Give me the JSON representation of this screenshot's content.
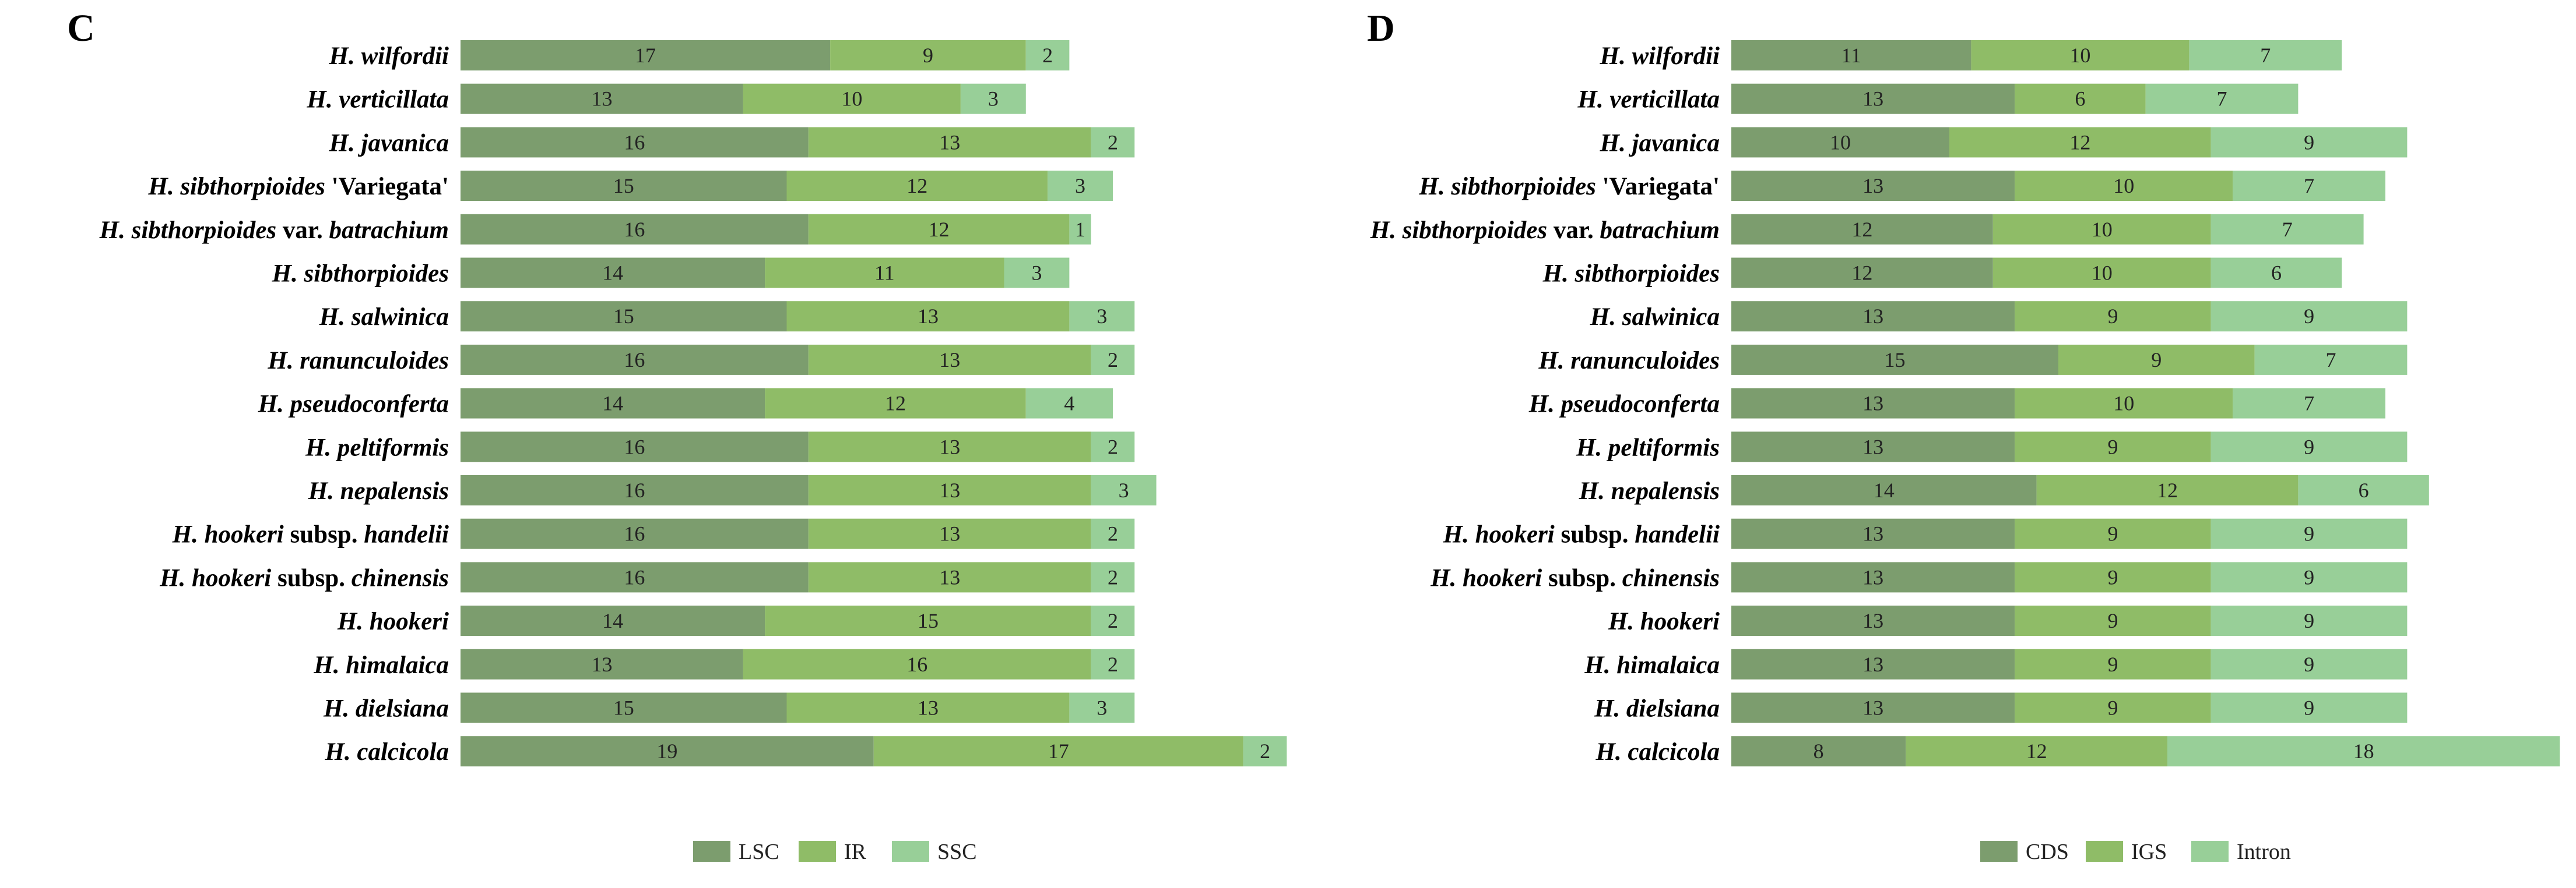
{
  "colors": {
    "seg1": "#7c9d6e",
    "seg2": "#8fbc67",
    "seg3": "#98cf98"
  },
  "chart_data": [
    {
      "type": "bar",
      "orientation": "horizontal",
      "stacked": true,
      "panel": "C",
      "title": "",
      "xlabel": "",
      "ylabel": "",
      "legend_position": "bottom-center",
      "categories": [
        {
          "name": "H. wilfordii",
          "italic": "H. wilfordii",
          "suffix": ""
        },
        {
          "name": "H. verticillata",
          "italic": "H. verticillata",
          "suffix": ""
        },
        {
          "name": "H. javanica",
          "italic": "H. javanica",
          "suffix": ""
        },
        {
          "name": "H. sibthorpioides 'Variegata'",
          "italic": "H. sibthorpioides",
          "suffix": " 'Variegata'"
        },
        {
          "name": "H. sibthorpioides var. batrachium",
          "italic": "H. sibthorpioides",
          "suffix": " var. ",
          "italic2": "batrachium"
        },
        {
          "name": "H. sibthorpioides",
          "italic": "H. sibthorpioides",
          "suffix": ""
        },
        {
          "name": "H. salwinica",
          "italic": "H. salwinica",
          "suffix": ""
        },
        {
          "name": "H. ranunculoides",
          "italic": "H. ranunculoides",
          "suffix": ""
        },
        {
          "name": "H. pseudoconferta",
          "italic": "H. pseudoconferta",
          "suffix": ""
        },
        {
          "name": "H. peltiformis",
          "italic": "H. peltiformis",
          "suffix": ""
        },
        {
          "name": "H. nepalensis",
          "italic": "H. nepalensis",
          "suffix": ""
        },
        {
          "name": "H. hookeri subsp. handelii",
          "italic": "H. hookeri",
          "suffix": " subsp. ",
          "italic2": "handelii"
        },
        {
          "name": "H. hookeri subsp. chinensis",
          "italic": "H. hookeri",
          "suffix": " subsp. ",
          "italic2": "chinensis"
        },
        {
          "name": "H. hookeri",
          "italic": "H. hookeri",
          "suffix": ""
        },
        {
          "name": "H. himalaica",
          "italic": "H. himalaica",
          "suffix": ""
        },
        {
          "name": "H. dielsiana",
          "italic": "H. dielsiana",
          "suffix": ""
        },
        {
          "name": "H. calcicola",
          "italic": "H. calcicola",
          "suffix": ""
        }
      ],
      "series": [
        {
          "name": "LSC",
          "values": [
            17,
            13,
            16,
            15,
            16,
            14,
            15,
            16,
            14,
            16,
            16,
            16,
            16,
            14,
            13,
            15,
            19
          ]
        },
        {
          "name": "IR",
          "values": [
            9,
            10,
            13,
            12,
            12,
            11,
            13,
            13,
            12,
            13,
            13,
            13,
            13,
            15,
            16,
            13,
            17
          ]
        },
        {
          "name": "SSC",
          "values": [
            2,
            3,
            2,
            3,
            1,
            3,
            3,
            2,
            4,
            2,
            3,
            2,
            2,
            2,
            2,
            3,
            2
          ]
        }
      ]
    },
    {
      "type": "bar",
      "orientation": "horizontal",
      "stacked": true,
      "panel": "D",
      "title": "",
      "xlabel": "",
      "ylabel": "",
      "legend_position": "bottom-center",
      "categories": [
        {
          "name": "H. wilfordii",
          "italic": "H. wilfordii",
          "suffix": ""
        },
        {
          "name": "H. verticillata",
          "italic": "H. verticillata",
          "suffix": ""
        },
        {
          "name": "H. javanica",
          "italic": "H. javanica",
          "suffix": ""
        },
        {
          "name": "H. sibthorpioides 'Variegata'",
          "italic": "H. sibthorpioides",
          "suffix": " 'Variegata'"
        },
        {
          "name": "H. sibthorpioides var. batrachium",
          "italic": "H. sibthorpioides",
          "suffix": " var. ",
          "italic2": "batrachium"
        },
        {
          "name": "H. sibthorpioides",
          "italic": "H. sibthorpioides",
          "suffix": ""
        },
        {
          "name": "H. salwinica",
          "italic": "H. salwinica",
          "suffix": ""
        },
        {
          "name": "H. ranunculoides",
          "italic": "H. ranunculoides",
          "suffix": ""
        },
        {
          "name": "H. pseudoconferta",
          "italic": "H. pseudoconferta",
          "suffix": ""
        },
        {
          "name": "H. peltiformis",
          "italic": "H. peltiformis",
          "suffix": ""
        },
        {
          "name": "H. nepalensis",
          "italic": "H. nepalensis",
          "suffix": ""
        },
        {
          "name": "H. hookeri subsp. handelii",
          "italic": "H. hookeri",
          "suffix": " subsp. ",
          "italic2": "handelii"
        },
        {
          "name": "H. hookeri subsp. chinensis",
          "italic": "H. hookeri",
          "suffix": " subsp. ",
          "italic2": "chinensis"
        },
        {
          "name": "H. hookeri",
          "italic": "H. hookeri",
          "suffix": ""
        },
        {
          "name": "H. himalaica",
          "italic": "H. himalaica",
          "suffix": ""
        },
        {
          "name": "H. dielsiana",
          "italic": "H. dielsiana",
          "suffix": ""
        },
        {
          "name": "H. calcicola",
          "italic": "H. calcicola",
          "suffix": ""
        }
      ],
      "series": [
        {
          "name": "CDS",
          "values": [
            11,
            13,
            10,
            13,
            12,
            12,
            13,
            15,
            13,
            13,
            14,
            13,
            13,
            13,
            13,
            13,
            8
          ]
        },
        {
          "name": "IGS",
          "values": [
            10,
            6,
            12,
            10,
            10,
            10,
            9,
            9,
            10,
            9,
            12,
            9,
            9,
            9,
            9,
            9,
            12
          ]
        },
        {
          "name": "Intron",
          "values": [
            7,
            7,
            9,
            7,
            7,
            6,
            9,
            7,
            7,
            9,
            6,
            9,
            9,
            9,
            9,
            9,
            18
          ]
        }
      ]
    }
  ]
}
